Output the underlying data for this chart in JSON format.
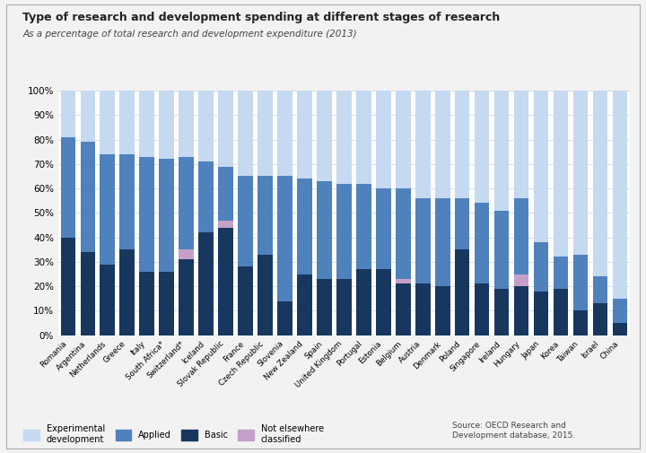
{
  "title": "Type of research and development spending at different stages of research",
  "subtitle": "As a percentage of total research and development expenditure (2013)",
  "source_text": "Source: OECD Research and\nDevelopment database, 2015.",
  "countries": [
    "Romania",
    "Argentina",
    "Netherlands",
    "Greece",
    "Italy",
    "South Africa*",
    "Switzerland*",
    "Iceland",
    "Slovak Republic",
    "France",
    "Czech Republic",
    "Slovenia",
    "New Zealand",
    "Spain",
    "United Kingdom",
    "Portugal",
    "Estonia",
    "Belgium",
    "Austria",
    "Denmark",
    "Poland",
    "Singapore",
    "Ireland",
    "Hungary",
    "Japan",
    "Korea",
    "Taiwan",
    "Israel",
    "China"
  ],
  "basic": [
    40,
    34,
    29,
    35,
    26,
    26,
    31,
    42,
    44,
    28,
    33,
    14,
    25,
    23,
    23,
    27,
    27,
    21,
    21,
    20,
    35,
    21,
    19,
    20,
    18,
    19,
    10,
    13,
    5
  ],
  "applied": [
    41,
    45,
    45,
    39,
    47,
    46,
    38,
    29,
    22,
    37,
    32,
    51,
    39,
    40,
    39,
    35,
    33,
    37,
    35,
    36,
    21,
    33,
    32,
    31,
    20,
    13,
    23,
    11,
    10
  ],
  "not_elsewhere": [
    0,
    0,
    0,
    0,
    0,
    0,
    4,
    0,
    3,
    0,
    0,
    0,
    0,
    0,
    0,
    0,
    0,
    2,
    0,
    0,
    0,
    0,
    0,
    5,
    0,
    0,
    0,
    0,
    0
  ],
  "experimental": [
    19,
    21,
    26,
    26,
    27,
    28,
    27,
    29,
    31,
    35,
    35,
    35,
    36,
    37,
    38,
    38,
    40,
    40,
    44,
    44,
    44,
    46,
    49,
    44,
    62,
    68,
    67,
    76,
    85
  ],
  "colors": {
    "experimental": "#c5d9f1",
    "applied": "#4f81bd",
    "basic": "#17375e",
    "not_elsewhere": "#c4a0c8"
  },
  "background_color": "#f2f2f2",
  "plot_bg_color": "#ffffff",
  "border_color": "#aaaaaa",
  "ylim": [
    0,
    100
  ],
  "ytick_labels": [
    "0%",
    "10%",
    "20%",
    "30%",
    "40%",
    "50%",
    "60%",
    "70%",
    "80%",
    "90%",
    "100%"
  ],
  "ytick_values": [
    0,
    10,
    20,
    30,
    40,
    50,
    60,
    70,
    80,
    90,
    100
  ]
}
